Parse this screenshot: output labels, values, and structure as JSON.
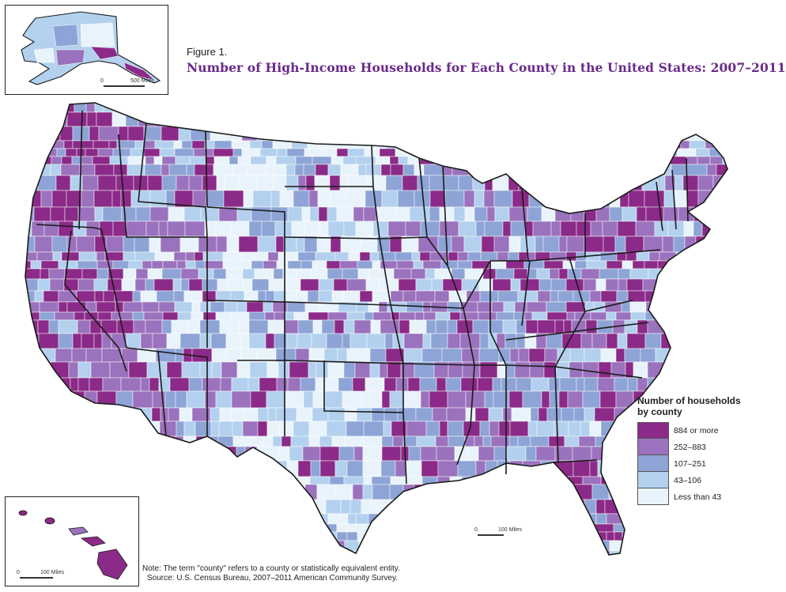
{
  "figure_label": "Figure 1.",
  "title": "Number of High-Income Households for Each County in the United States: 2007–2011",
  "legend": {
    "title_line1": "Number of households",
    "title_line2": "by county",
    "items": [
      {
        "label": "884 or more",
        "color": "#8b2a88"
      },
      {
        "label": "252–883",
        "color": "#9b72bd"
      },
      {
        "label": "107–251",
        "color": "#8ea4d6"
      },
      {
        "label": "43–106",
        "color": "#b3d1ee"
      },
      {
        "label": "Less than 43",
        "color": "#e9f3fb"
      }
    ]
  },
  "scales": {
    "alaska": {
      "zero": "0",
      "distance": "500 Miles"
    },
    "mainland": {
      "zero": "0",
      "distance": "100 Miles"
    },
    "hawaii": {
      "zero": "0",
      "distance": "100 Miles"
    }
  },
  "note": "Note: The term \"county\" refers to a county or statistically equivalent entity.",
  "source": "Source: U.S. Census Bureau, 2007–2011 American Community Survey.",
  "colors": {
    "boundary": "#1a1a1a",
    "county_line": "#ffffff",
    "title": "#6a2a8a"
  }
}
